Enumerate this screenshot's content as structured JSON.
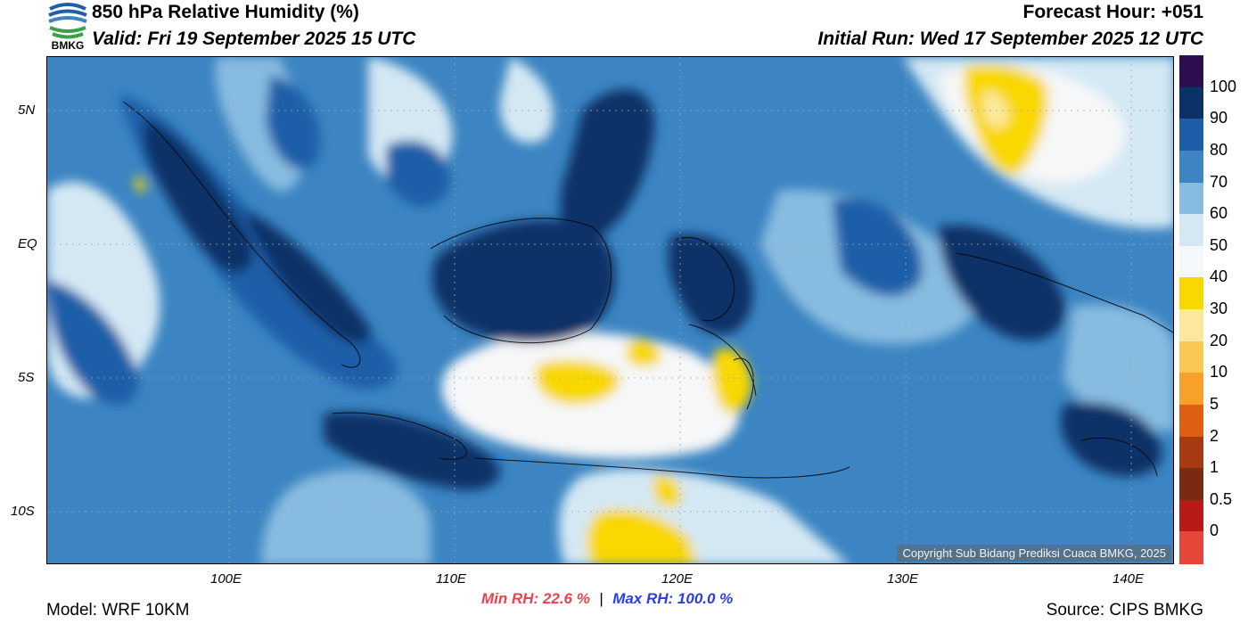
{
  "header": {
    "title": "850 hPa Relative Humidity (%)",
    "valid": "Valid: Fri 19 September 2025 15 UTC",
    "forecast_hour": "Forecast Hour: +051",
    "initial_run": "Initial Run: Wed 17 September 2025 12 UTC"
  },
  "logo": {
    "text": "BMKG",
    "icon": "bmkg-logo-icon"
  },
  "axes": {
    "lat_labels": [
      "5N",
      "EQ",
      "5S",
      "10S"
    ],
    "lon_labels": [
      "100E",
      "110E",
      "120E",
      "130E",
      "140E"
    ]
  },
  "colorbar": {
    "labels": [
      "100",
      "90",
      "80",
      "70",
      "60",
      "50",
      "40",
      "30",
      "20",
      "10",
      "5",
      "2",
      "1",
      "0.5",
      "0"
    ],
    "colors": [
      "#2d0e4e",
      "#0b3268",
      "#1e5ea8",
      "#3c85c2",
      "#88bbe0",
      "#d4e8f4",
      "#f6f7f8",
      "#f8d800",
      "#fbe89c",
      "#fbc855",
      "#f8a02a",
      "#df5f12",
      "#a83a12",
      "#7a2a12",
      "#b81a1a",
      "#e6453a"
    ]
  },
  "copyright": "Copyright Sub Bidang Prediksi Cuaca BMKG, 2025",
  "footer": {
    "model": "Model: WRF 10KM",
    "min_rh": "Min RH:  22.6 %",
    "separator": "|",
    "max_rh": "Max RH: 100.0 %",
    "source": "Source: CIPS BMKG"
  },
  "styles": {
    "min_color": "#e8434a",
    "max_color": "#2b3fe0",
    "ocean_base": "#3c85c2"
  }
}
